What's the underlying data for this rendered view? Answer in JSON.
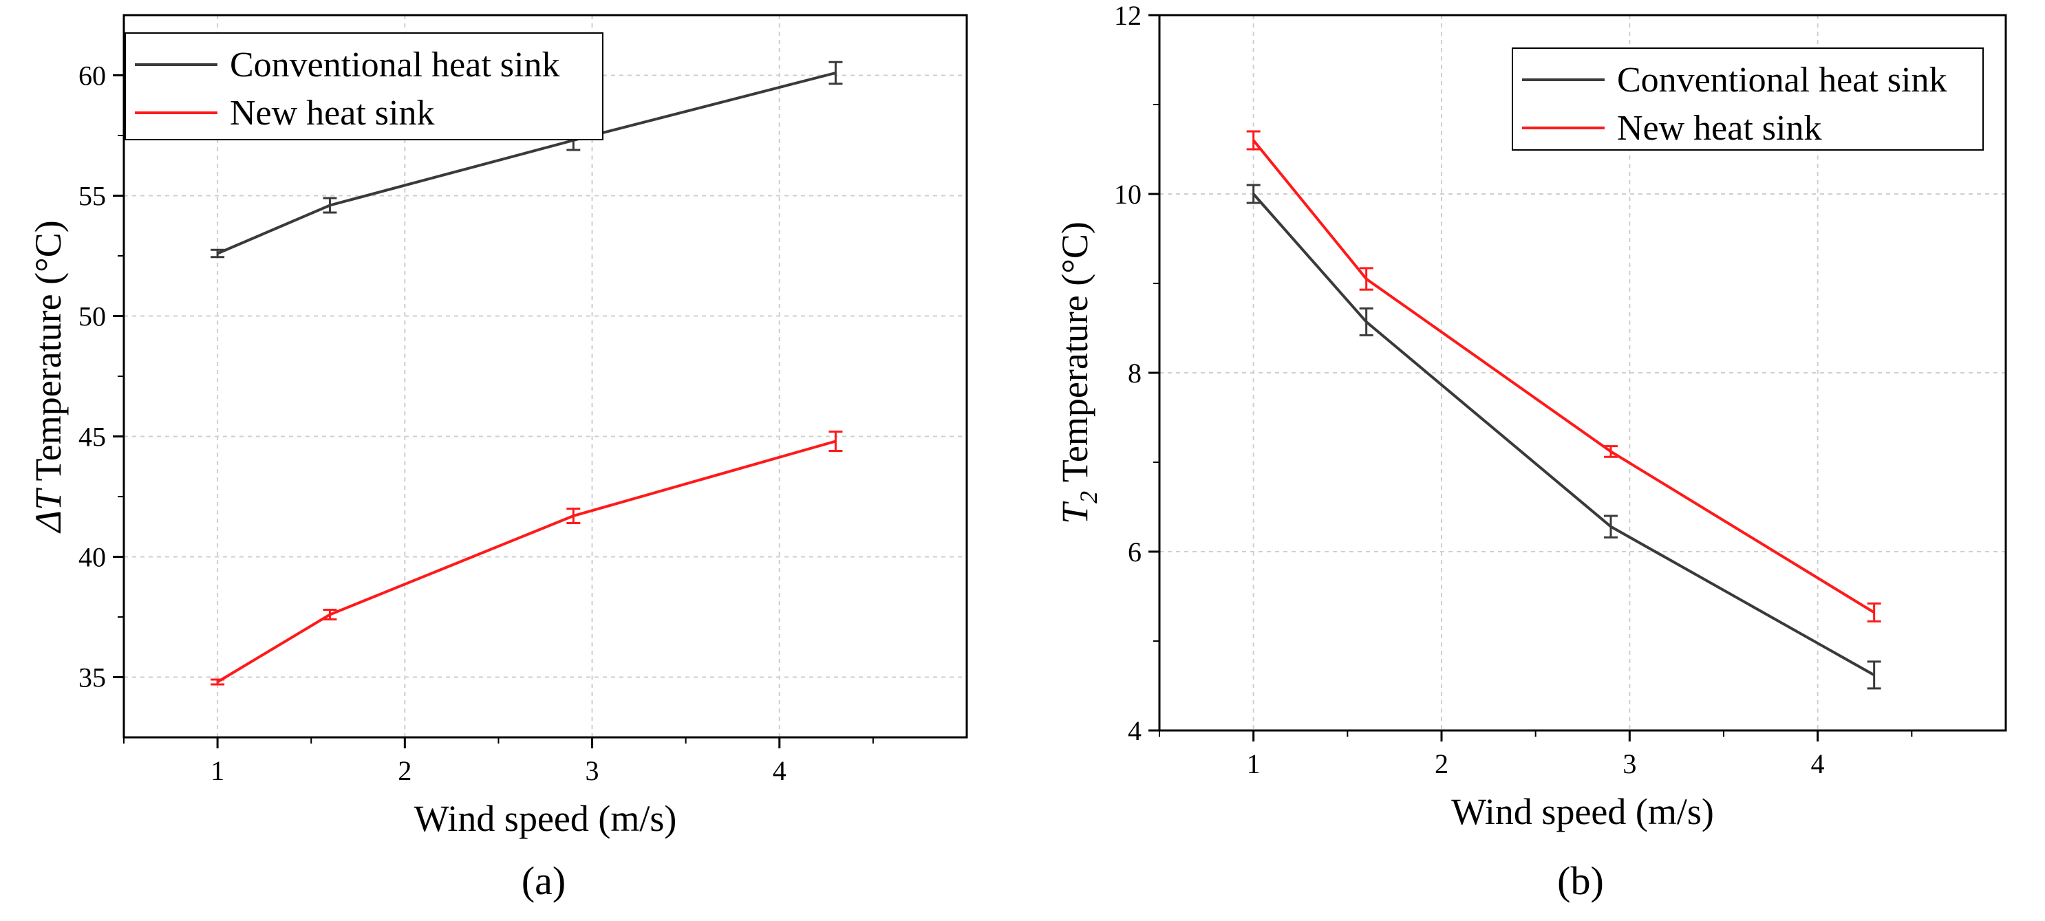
{
  "chart_data": [
    {
      "type": "line",
      "panel_label": "(a)",
      "xlabel": "Wind speed (m/s)",
      "ylabel_symbol": "ΔT",
      "ylabel_text": "Temperature (°C)",
      "xlim": [
        0.5,
        5.0
      ],
      "ylim": [
        32.5,
        62.5
      ],
      "xticks": [
        1,
        2,
        3,
        4
      ],
      "yticks": [
        35,
        40,
        45,
        50,
        55,
        60
      ],
      "grid": true,
      "legend_position": "top-left",
      "series": [
        {
          "name": "Conventional heat sink",
          "color": "#3a3a3a",
          "x": [
            1.0,
            1.6,
            2.9,
            4.3
          ],
          "y": [
            52.6,
            54.6,
            57.3,
            60.1
          ],
          "err": [
            0.15,
            0.3,
            0.4,
            0.45
          ]
        },
        {
          "name": "New heat sink",
          "color": "#ff1a1a",
          "x": [
            1.0,
            1.6,
            2.9,
            4.3
          ],
          "y": [
            34.8,
            37.6,
            41.7,
            44.8
          ],
          "err": [
            0.1,
            0.2,
            0.3,
            0.4
          ]
        }
      ]
    },
    {
      "type": "line",
      "panel_label": "(b)",
      "xlabel": "Wind speed (m/s)",
      "ylabel_symbol": "T",
      "ylabel_subscript": "2",
      "ylabel_text": "Temperature (°C)",
      "xlim": [
        0.5,
        5.0
      ],
      "ylim": [
        4,
        12
      ],
      "xticks": [
        1,
        2,
        3,
        4
      ],
      "yticks": [
        4,
        6,
        8,
        10,
        12
      ],
      "grid": true,
      "legend_position": "top-right",
      "series": [
        {
          "name": "Conventional heat sink",
          "color": "#3a3a3a",
          "x": [
            1.0,
            1.6,
            2.9,
            4.3
          ],
          "y": [
            10.0,
            8.57,
            6.28,
            4.62
          ],
          "err": [
            0.1,
            0.15,
            0.12,
            0.15
          ]
        },
        {
          "name": "New heat sink",
          "color": "#ff1a1a",
          "x": [
            1.0,
            1.6,
            2.9,
            4.3
          ],
          "y": [
            10.6,
            9.05,
            7.12,
            5.32
          ],
          "err": [
            0.1,
            0.12,
            0.06,
            0.1
          ]
        }
      ]
    }
  ]
}
